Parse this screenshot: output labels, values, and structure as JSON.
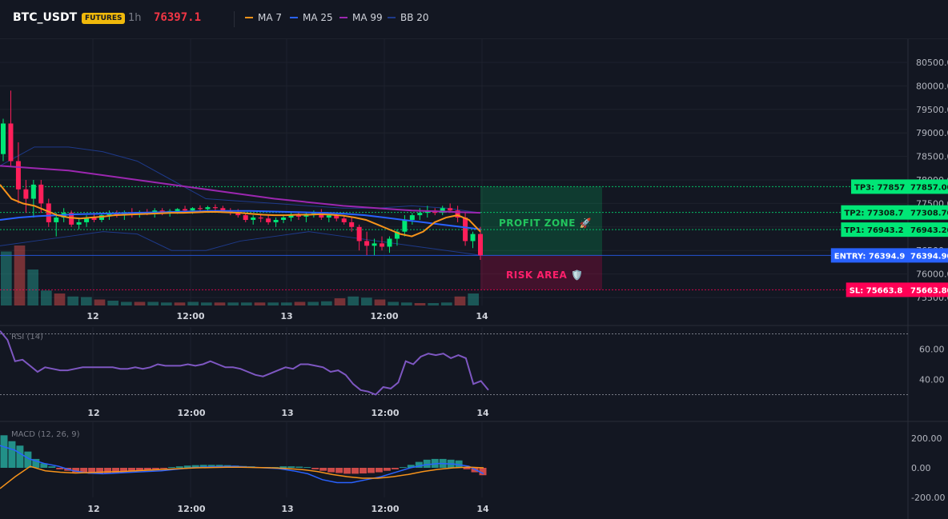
{
  "header": {
    "symbol": "BTC_USDT",
    "badge": "FUTURES",
    "interval": "1h",
    "price": "76397.1",
    "legend": [
      {
        "label": "MA 7",
        "color": "#f7931a"
      },
      {
        "label": "MA 25",
        "color": "#2962ff"
      },
      {
        "label": "MA 99",
        "color": "#9c27b0"
      },
      {
        "label": "BB 20",
        "color": "#1e3a8a"
      }
    ]
  },
  "chart_data": [
    {
      "type": "candlestick",
      "title": "",
      "ylim": [
        75200,
        81000
      ],
      "y_ticks": [
        "80500.00",
        "80000.00",
        "79500.00",
        "79000.00",
        "78500.00",
        "78000.00",
        "77500.00",
        "77000.00",
        "76500.00",
        "76000.00",
        "75500.00"
      ],
      "x_ticks": [
        "12",
        "12:00",
        "13",
        "12:00",
        "14"
      ],
      "candles": [
        [
          78550,
          79300,
          78400,
          79200
        ],
        [
          79200,
          79900,
          78300,
          78400
        ],
        [
          78400,
          78800,
          77500,
          77800
        ],
        [
          77800,
          78000,
          77300,
          77600
        ],
        [
          77600,
          78000,
          77200,
          77900
        ],
        [
          77900,
          78000,
          77300,
          77500
        ],
        [
          77500,
          77600,
          77000,
          77100
        ],
        [
          77100,
          77300,
          76800,
          77200
        ],
        [
          77200,
          77400,
          77100,
          77300
        ],
        [
          77300,
          77350,
          77000,
          77050
        ],
        [
          77050,
          77200,
          76950,
          77100
        ],
        [
          77100,
          77250,
          77000,
          77200
        ],
        [
          77200,
          77300,
          77100,
          77150
        ],
        [
          77150,
          77300,
          77100,
          77250
        ],
        [
          77250,
          77350,
          77150,
          77300
        ],
        [
          77300,
          77350,
          77200,
          77250
        ],
        [
          77250,
          77350,
          77150,
          77300
        ],
        [
          77300,
          77400,
          77200,
          77280
        ],
        [
          77280,
          77350,
          77200,
          77320
        ],
        [
          77320,
          77380,
          77250,
          77300
        ],
        [
          77300,
          77400,
          77200,
          77350
        ],
        [
          77350,
          77400,
          77250,
          77300
        ],
        [
          77300,
          77380,
          77220,
          77340
        ],
        [
          77340,
          77400,
          77280,
          77380
        ],
        [
          77380,
          77450,
          77300,
          77350
        ],
        [
          77350,
          77420,
          77280,
          77400
        ],
        [
          77400,
          77460,
          77320,
          77380
        ],
        [
          77380,
          77450,
          77300,
          77420
        ],
        [
          77420,
          77480,
          77350,
          77400
        ],
        [
          77400,
          77450,
          77300,
          77350
        ],
        [
          77350,
          77400,
          77250,
          77300
        ],
        [
          77300,
          77380,
          77200,
          77250
        ],
        [
          77250,
          77300,
          77100,
          77150
        ],
        [
          77150,
          77250,
          77050,
          77200
        ],
        [
          77200,
          77280,
          77100,
          77180
        ],
        [
          77180,
          77250,
          77050,
          77100
        ],
        [
          77100,
          77200,
          77000,
          77150
        ],
        [
          77150,
          77250,
          77080,
          77200
        ],
        [
          77200,
          77300,
          77120,
          77250
        ],
        [
          77250,
          77320,
          77150,
          77220
        ],
        [
          77220,
          77300,
          77100,
          77280
        ],
        [
          77280,
          77350,
          77200,
          77300
        ],
        [
          77300,
          77380,
          77150,
          77200
        ],
        [
          77200,
          77280,
          77100,
          77250
        ],
        [
          77250,
          77300,
          77120,
          77180
        ],
        [
          77180,
          77250,
          77050,
          77100
        ],
        [
          77100,
          77200,
          76900,
          77000
        ],
        [
          77000,
          77050,
          76500,
          76700
        ],
        [
          76700,
          76900,
          76400,
          76600
        ],
        [
          76600,
          76750,
          76400,
          76650
        ],
        [
          76650,
          76800,
          76500,
          76580
        ],
        [
          76580,
          76800,
          76450,
          76750
        ],
        [
          76750,
          76950,
          76600,
          76900
        ],
        [
          76900,
          77250,
          76800,
          77150
        ],
        [
          77150,
          77300,
          77050,
          77250
        ],
        [
          77250,
          77400,
          77150,
          77300
        ],
        [
          77300,
          77450,
          77200,
          77350
        ],
        [
          77350,
          77400,
          77250,
          77300
        ],
        [
          77300,
          77450,
          77250,
          77400
        ],
        [
          77400,
          77500,
          77300,
          77350
        ],
        [
          77350,
          77450,
          77100,
          77200
        ],
        [
          77200,
          77300,
          76600,
          76700
        ],
        [
          76700,
          76900,
          76550,
          76850
        ],
        [
          76850,
          77000,
          76300,
          76397
        ]
      ],
      "ma7": [
        77900,
        77600,
        77500,
        77450,
        77350,
        77250,
        77200,
        77180,
        77200,
        77220,
        77250,
        77260,
        77270,
        77280,
        77290,
        77300,
        77300,
        77310,
        77320,
        77320,
        77310,
        77300,
        77280,
        77260,
        77250,
        77250,
        77260,
        77260,
        77270,
        77260,
        77240,
        77200,
        77150,
        77050,
        76950,
        76850,
        76800,
        76900,
        77100,
        77200,
        77250,
        77150,
        76900
      ],
      "ma25": [
        77150,
        77200,
        77230,
        77250,
        77270,
        77280,
        77290,
        77300,
        77310,
        77320,
        77330,
        77340,
        77340,
        77340,
        77330,
        77320,
        77310,
        77300,
        77280,
        77250,
        77200,
        77150,
        77100,
        77050,
        77000,
        76950
      ],
      "ma99": [
        78300,
        78200,
        78000,
        77800,
        77600,
        77450,
        77350,
        77300
      ],
      "bb_upper": [
        78300,
        78700,
        78700,
        78600,
        78400,
        78000,
        77600,
        77550,
        77500,
        77450,
        77400,
        77400,
        77450,
        77400,
        77300
      ],
      "bb_lower": [
        76600,
        76700,
        76800,
        76900,
        76850,
        76500,
        76500,
        76700,
        76800,
        76900,
        76800,
        76700,
        76600,
        76500,
        76400
      ],
      "volume": [
        90,
        100,
        60,
        25,
        20,
        15,
        14,
        10,
        8,
        6,
        6,
        6,
        5,
        5,
        6,
        5,
        5,
        5,
        5,
        5,
        5,
        5,
        6,
        6,
        7,
        12,
        15,
        13,
        10,
        6,
        5,
        4,
        4,
        5,
        15,
        20
      ],
      "levels": [
        {
          "label": "TP3: 77857",
          "axis": "77857.00",
          "price": 77857,
          "color": "#00e676"
        },
        {
          "label": "TP2: 77308.7",
          "axis": "77308.70",
          "price": 77308.7,
          "color": "#00e676"
        },
        {
          "label": "TP1: 76943.2",
          "axis": "76943.20",
          "price": 76943.2,
          "color": "#00e676"
        },
        {
          "label": "ENTRY: 76394.9",
          "axis": "76394.90",
          "price": 76394.9,
          "color": "#2962ff"
        },
        {
          "label": "SL: 75663.8",
          "axis": "75663.80",
          "price": 75663.8,
          "color": "#ff0055"
        }
      ],
      "zones": {
        "profit": "PROFIT ZONE 🚀",
        "risk": "RISK AREA 🛡️"
      }
    },
    {
      "type": "line",
      "title": "RSI (14)",
      "ylim": [
        25,
        75
      ],
      "y_ticks": [
        "60.00",
        "40.00"
      ],
      "x_ticks": [
        "12",
        "12:00",
        "13",
        "12:00",
        "14"
      ],
      "guides": [
        70,
        30
      ],
      "values": [
        72,
        66,
        52,
        53,
        49,
        45,
        48,
        47,
        46,
        46,
        47,
        48,
        48,
        48,
        48,
        48,
        47,
        47,
        48,
        47,
        48,
        50,
        49,
        49,
        49,
        50,
        49,
        50,
        52,
        50,
        48,
        48,
        47,
        45,
        43,
        42,
        44,
        46,
        48,
        47,
        50,
        50,
        49,
        48,
        45,
        46,
        43,
        37,
        33,
        32,
        30,
        35,
        34,
        38,
        52,
        50,
        55,
        57,
        56,
        57,
        54,
        56,
        54,
        37,
        39,
        33
      ]
    },
    {
      "type": "bar",
      "title": "MACD (12, 26, 9)",
      "ylim": [
        -200,
        260
      ],
      "y_ticks": [
        "200.00",
        "0.00",
        "-200.00"
      ],
      "x_ticks": [
        "12",
        "12:00",
        "13",
        "12:00",
        "14"
      ],
      "histogram": [
        220,
        180,
        150,
        110,
        60,
        30,
        10,
        -10,
        -20,
        -30,
        -35,
        -40,
        -40,
        -38,
        -35,
        -30,
        -25,
        -20,
        -15,
        -10,
        -5,
        5,
        10,
        15,
        18,
        20,
        20,
        20,
        18,
        15,
        12,
        10,
        5,
        5,
        5,
        10,
        10,
        8,
        5,
        -10,
        -20,
        -30,
        -35,
        -40,
        -40,
        -38,
        -35,
        -30,
        -20,
        -10,
        5,
        20,
        40,
        55,
        60,
        60,
        55,
        50,
        -10,
        -30,
        -50
      ],
      "macd": [
        150,
        120,
        60,
        30,
        10,
        -20,
        -35,
        -40,
        -35,
        -30,
        -25,
        -20,
        -10,
        0,
        5,
        8,
        10,
        5,
        0,
        -5,
        -20,
        -40,
        -80,
        -100,
        -100,
        -80,
        -60,
        -30,
        0,
        20,
        30,
        25,
        10,
        -40
      ],
      "signal": [
        -140,
        -60,
        10,
        -20,
        -30,
        -35,
        -32,
        -28,
        -25,
        -20,
        -15,
        -10,
        -5,
        0,
        2,
        4,
        4,
        2,
        0,
        -5,
        -12,
        -25,
        -45,
        -60,
        -70,
        -70,
        -60,
        -45,
        -25,
        -10,
        0,
        5,
        0
      ]
    }
  ]
}
